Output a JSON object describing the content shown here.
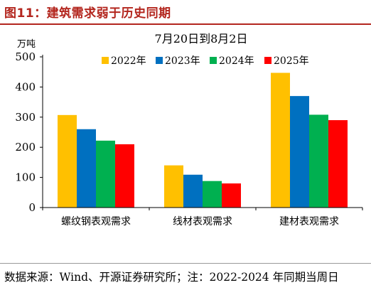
{
  "figure": {
    "title": "图11：建筑需求弱于历史同期",
    "source": "数据来源：Wind、开源证券研究所；注：2022-2024 年同期当周日"
  },
  "chart_data": {
    "type": "bar",
    "title": "7月20日到8月2日",
    "ylabel": "万吨",
    "xlabel": "",
    "ylim": [
      0,
      500
    ],
    "yticks": [
      0,
      100,
      200,
      300,
      400,
      500
    ],
    "categories": [
      "螺纹钢表观需求",
      "线材表观需求",
      "建材表观需求"
    ],
    "series": [
      {
        "name": "2022年",
        "color": "#ffc000",
        "values": [
          307,
          140,
          447
        ]
      },
      {
        "name": "2023年",
        "color": "#0070c0",
        "values": [
          260,
          109,
          370
        ]
      },
      {
        "name": "2024年",
        "color": "#00b050",
        "values": [
          222,
          88,
          308
        ]
      },
      {
        "name": "2025年",
        "color": "#ff0000",
        "values": [
          210,
          80,
          290
        ]
      }
    ],
    "legend_position": "top",
    "grid": false
  }
}
